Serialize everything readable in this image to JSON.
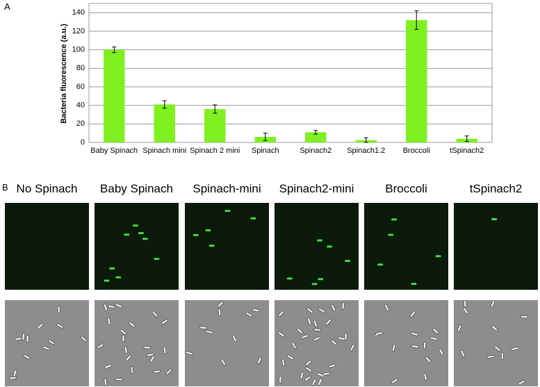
{
  "panel_labels": [
    "A",
    "B"
  ],
  "chart_data": {
    "type": "bar",
    "ylabel": "Bacteria fluorescence (a.u.)",
    "categories": [
      "Baby Spinach",
      "Spinach mini",
      "Spinach 2 mini",
      "Spinach",
      "Spinach2",
      "Spinach1.2",
      "Broccoli",
      "tSpinach2"
    ],
    "values": [
      100,
      41,
      36,
      6,
      11,
      2.5,
      132,
      4
    ],
    "errors": [
      3,
      4,
      4.5,
      4,
      2,
      2.5,
      10,
      3
    ],
    "color": "#80f020",
    "ylim": [
      0,
      150
    ],
    "yticks": [
      0,
      20,
      40,
      60,
      80,
      100,
      120,
      140
    ],
    "grid": true
  },
  "images": {
    "labels": [
      "No Spinach",
      "Baby Spinach",
      "Spinach-mini",
      "Spinach2-mini",
      "Broccoli",
      "tSpinach2"
    ]
  }
}
